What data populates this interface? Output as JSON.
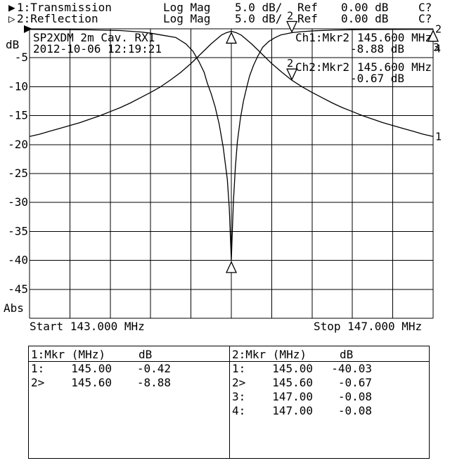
{
  "app": {
    "background": "#ffffff",
    "foreground": "#000000"
  },
  "header": {
    "rows": [
      {
        "arrow": "▶",
        "trace": "1:Transmission",
        "format": "Log Mag",
        "scale": "5.0 dB/",
        "ref_label": "Ref",
        "ref_value": "0.00 dB",
        "cal": "C?"
      },
      {
        "arrow": "▷",
        "trace": "2:Reflection",
        "format": "Log Mag",
        "scale": "5.0 dB/",
        "ref_label": "Ref",
        "ref_value": "0.00 dB",
        "cal": "C?"
      }
    ]
  },
  "plot": {
    "y_axis_label": "dB",
    "y_axis_bottom_label": "Abs",
    "start_label": "Start 143.000 MHz",
    "stop_label": "Stop 147.000 MHz",
    "title": "SP2XDM 2m Cav. RX1",
    "timestamp": "2012-10-06 12:19:21",
    "readouts": [
      {
        "label": "Ch1:Mkr2",
        "freq": "145.600 MHz",
        "value": "-8.88 dB"
      },
      {
        "label": "Ch2:Mkr2",
        "freq": "145.600 MHz",
        "value": "-0.67 dB"
      }
    ],
    "markers": [
      {
        "name": "marker-1-transmission",
        "mhz": 145.0,
        "db": -0.42,
        "dir": "up",
        "label": ""
      },
      {
        "name": "marker-1-reflection",
        "mhz": 145.0,
        "db": -40.03,
        "dir": "up",
        "label": ""
      },
      {
        "name": "marker-2-transmission",
        "mhz": 145.6,
        "db": -8.88,
        "dir": "down",
        "label": "2"
      },
      {
        "name": "marker-2-reflection",
        "mhz": 145.6,
        "db": -0.67,
        "dir": "down",
        "label": "2"
      },
      {
        "name": "marker-3-reflection",
        "mhz": 147.0,
        "db": -0.08,
        "dir": "up",
        "label": "3"
      },
      {
        "name": "marker-4-reflection",
        "mhz": 147.0,
        "db": -0.08,
        "dir": "up",
        "label": "4",
        "label_dx": 2,
        "label_dy": 2
      }
    ],
    "edge_labels": [
      {
        "text": "2",
        "db": -0.08
      },
      {
        "text": "1",
        "db": -18.6
      }
    ],
    "marker_line_mhz": 145.0,
    "ref_arrow_db": 0
  },
  "tables": [
    {
      "header_label": "1:Mkr (MHz)",
      "header_unit": "dB",
      "rows": [
        [
          "1:",
          "145.00",
          "-0.42"
        ],
        [
          "2>",
          "145.60",
          "-8.88"
        ]
      ]
    },
    {
      "header_label": "2:Mkr (MHz)",
      "header_unit": "dB",
      "rows": [
        [
          "1:",
          "145.00",
          "-40.03"
        ],
        [
          "2>",
          "145.60",
          "-0.67"
        ],
        [
          "3:",
          "147.00",
          "-0.08"
        ],
        [
          "4:",
          "147.00",
          "-0.08"
        ]
      ]
    }
  ],
  "chart_data": {
    "type": "line",
    "title": "SP2XDM 2m Cav. RX1",
    "x_unit": "MHz",
    "y_unit": "dB",
    "xlim": [
      143.0,
      147.0
    ],
    "ylim": [
      -50,
      0
    ],
    "x_start": 143.0,
    "x_stop": 147.0,
    "x_divisions": 10,
    "y_divisions": 10,
    "y_scale_per_div": 5.0,
    "y_ticks": [
      -5,
      -10,
      -15,
      -20,
      -25,
      -30,
      -35,
      -40,
      -45
    ],
    "grid": true,
    "series": [
      {
        "name": "Transmission",
        "points": [
          [
            143.0,
            -18.6
          ],
          [
            143.1,
            -18.2
          ],
          [
            143.2,
            -17.7
          ],
          [
            143.3,
            -17.2
          ],
          [
            143.4,
            -16.7
          ],
          [
            143.5,
            -16.2
          ],
          [
            143.6,
            -15.6
          ],
          [
            143.7,
            -15.0
          ],
          [
            143.8,
            -14.3
          ],
          [
            143.9,
            -13.6
          ],
          [
            144.0,
            -12.8
          ],
          [
            144.1,
            -11.9
          ],
          [
            144.2,
            -11.0
          ],
          [
            144.3,
            -10.0
          ],
          [
            144.4,
            -8.8
          ],
          [
            144.5,
            -7.5
          ],
          [
            144.6,
            -6.0
          ],
          [
            144.7,
            -4.3
          ],
          [
            144.8,
            -2.6
          ],
          [
            144.9,
            -1.1
          ],
          [
            144.95,
            -0.68
          ],
          [
            145.0,
            -0.42
          ],
          [
            145.05,
            -0.68
          ],
          [
            145.1,
            -1.1
          ],
          [
            145.2,
            -2.6
          ],
          [
            145.3,
            -4.3
          ],
          [
            145.4,
            -6.0
          ],
          [
            145.5,
            -7.5
          ],
          [
            145.6,
            -8.88
          ],
          [
            145.7,
            -10.0
          ],
          [
            145.8,
            -11.0
          ],
          [
            145.9,
            -11.9
          ],
          [
            146.0,
            -12.8
          ],
          [
            146.1,
            -13.6
          ],
          [
            146.2,
            -14.3
          ],
          [
            146.3,
            -15.0
          ],
          [
            146.4,
            -15.6
          ],
          [
            146.5,
            -16.2
          ],
          [
            146.6,
            -16.7
          ],
          [
            146.7,
            -17.2
          ],
          [
            146.8,
            -17.7
          ],
          [
            146.9,
            -18.2
          ],
          [
            147.0,
            -18.6
          ]
        ]
      },
      {
        "name": "Reflection",
        "points": [
          [
            143.0,
            -0.1
          ],
          [
            143.3,
            -0.13
          ],
          [
            143.6,
            -0.18
          ],
          [
            143.9,
            -0.3
          ],
          [
            144.1,
            -0.55
          ],
          [
            144.2,
            -0.75
          ],
          [
            144.3,
            -1.05
          ],
          [
            144.45,
            -1.5
          ],
          [
            144.55,
            -2.6
          ],
          [
            144.62,
            -3.9
          ],
          [
            144.68,
            -5.7
          ],
          [
            144.73,
            -7.5
          ],
          [
            144.76,
            -9.3
          ],
          [
            144.8,
            -11.2
          ],
          [
            144.84,
            -13.5
          ],
          [
            144.88,
            -16.5
          ],
          [
            144.92,
            -20.5
          ],
          [
            144.96,
            -26.0
          ],
          [
            144.98,
            -31.0
          ],
          [
            145.0,
            -40.03
          ],
          [
            145.01,
            -35.0
          ],
          [
            145.02,
            -30.0
          ],
          [
            145.04,
            -24.0
          ],
          [
            145.06,
            -19.5
          ],
          [
            145.09,
            -15.5
          ],
          [
            145.12,
            -12.5
          ],
          [
            145.15,
            -10.3
          ],
          [
            145.18,
            -8.2
          ],
          [
            145.22,
            -6.3
          ],
          [
            145.26,
            -4.8
          ],
          [
            145.31,
            -3.2
          ],
          [
            145.37,
            -2.2
          ],
          [
            145.43,
            -1.55
          ],
          [
            145.49,
            -1.05
          ],
          [
            145.6,
            -0.67
          ],
          [
            145.7,
            -0.48
          ],
          [
            145.84,
            -0.33
          ],
          [
            146.0,
            -0.23
          ],
          [
            146.2,
            -0.16
          ],
          [
            146.4,
            -0.12
          ],
          [
            146.6,
            -0.1
          ],
          [
            146.8,
            -0.08
          ],
          [
            147.0,
            -0.08
          ]
        ]
      }
    ]
  }
}
